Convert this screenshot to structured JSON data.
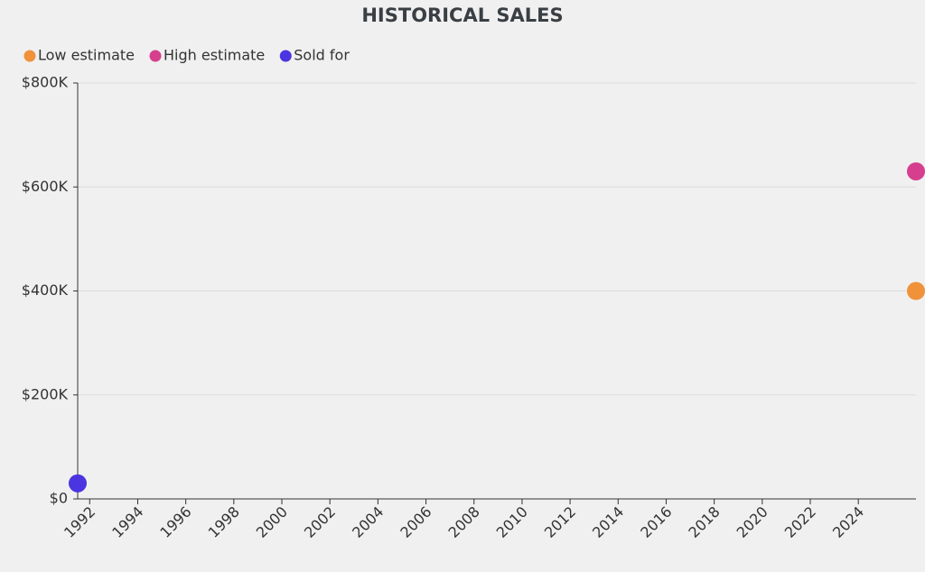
{
  "chart_data": {
    "type": "scatter",
    "title": "HISTORICAL SALES",
    "series": [
      {
        "name": "Low estimate",
        "color": "#f0923a",
        "x": [
          2026.4
        ],
        "values": [
          400000
        ]
      },
      {
        "name": "High estimate",
        "color": "#d63f8e",
        "x": [
          2026.4
        ],
        "values": [
          630000
        ]
      },
      {
        "name": "Sold for",
        "color": "#4b35e0",
        "x": [
          1991.5
        ],
        "values": [
          30000
        ]
      }
    ],
    "xlim": [
      1991.5,
      2026.4
    ],
    "xticks": [
      1992,
      1994,
      1996,
      1998,
      2000,
      2002,
      2004,
      2006,
      2008,
      2010,
      2012,
      2014,
      2016,
      2018,
      2020,
      2022,
      2024
    ],
    "ylim": [
      0,
      800000
    ],
    "yticks": [
      {
        "value": 0,
        "label": "$0"
      },
      {
        "value": 200000,
        "label": "$200K"
      },
      {
        "value": 400000,
        "label": "$400K"
      },
      {
        "value": 600000,
        "label": "$600K"
      },
      {
        "value": 800000,
        "label": "$800K"
      }
    ],
    "grid": true,
    "legend": "top-left"
  }
}
